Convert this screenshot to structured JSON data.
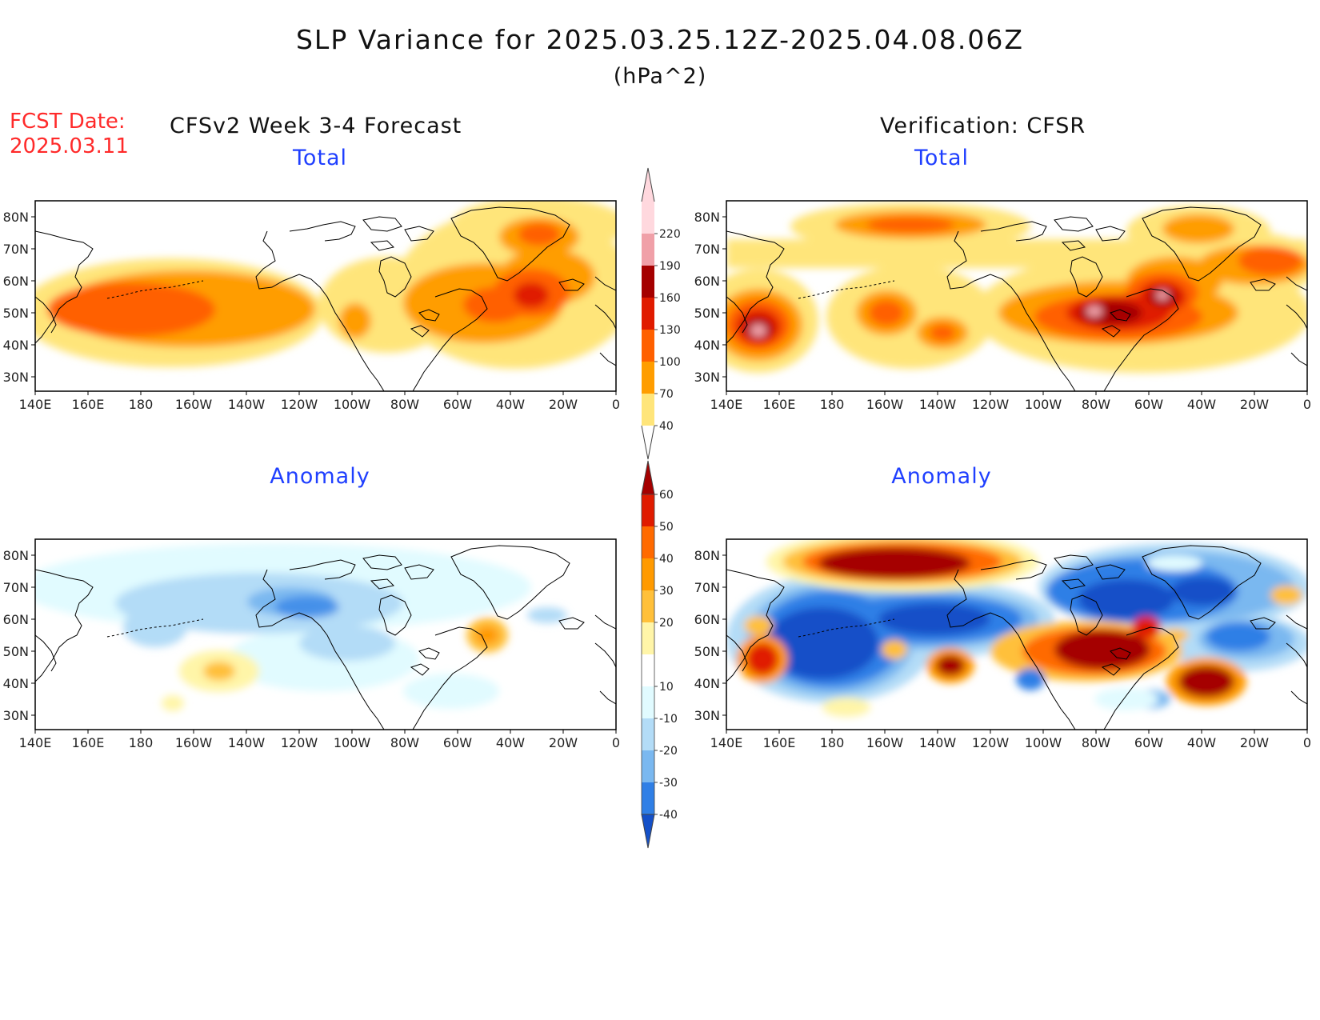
{
  "title": "SLP Variance for 2025.03.25.12Z-2025.04.08.06Z",
  "units": "(hPa^2)",
  "forecast_date_label": "FCST Date:",
  "forecast_date": "2025.03.11",
  "left_header": "CFSv2 Week 3-4 Forecast",
  "right_header": "Verification: CFSR",
  "panels": {
    "top_left": "Total",
    "top_right": "Total",
    "bottom_left": "Anomaly",
    "bottom_right": "Anomaly"
  },
  "lat_labels": [
    "80N",
    "70N",
    "60N",
    "50N",
    "40N",
    "30N"
  ],
  "lon_labels": [
    "140E",
    "160E",
    "180",
    "160W",
    "140W",
    "120W",
    "100W",
    "80W",
    "60W",
    "40W",
    "20W",
    "0"
  ],
  "total_colorbar": {
    "labels": [
      "40",
      "70",
      "100",
      "130",
      "160",
      "190",
      "220"
    ],
    "colors": [
      "#ffe57a",
      "#ff9d00",
      "#ff6000",
      "#e01b00",
      "#a50000",
      "#f0a0a8",
      "#ffd8de"
    ]
  },
  "anomaly_colorbar": {
    "labels": [
      "-40",
      "-30",
      "-20",
      "-10",
      "10",
      "20",
      "30",
      "40",
      "50",
      "60"
    ],
    "colors": [
      "#1450c8",
      "#2f7fe6",
      "#7ab8f0",
      "#b3dcf7",
      "#e1fbff",
      "#ffffff",
      "#fff5a8",
      "#ffc03a",
      "#ff9a00",
      "#ff6a00",
      "#e01b00",
      "#a50000"
    ]
  }
}
